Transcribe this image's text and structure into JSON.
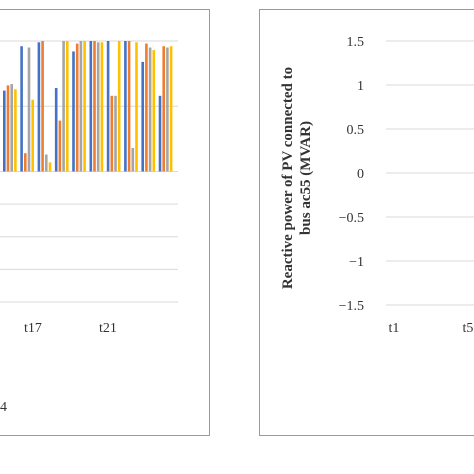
{
  "chart_data": [
    {
      "type": "bar",
      "x_tick_labels": [
        "t17",
        "t21"
      ],
      "legend_fragment": "4",
      "ylim": [
        -1,
        1
      ],
      "grid": true,
      "colors": [
        "#4472C4",
        "#ED7D31",
        "#A5A5A5",
        "#FFC000"
      ],
      "groups": [
        [
          0.62,
          0.66,
          0.67,
          0.63
        ],
        [
          0.96,
          0.14,
          0.95,
          0.55
        ],
        [
          0.99,
          1.0,
          0.13,
          0.07
        ],
        [
          0.64,
          0.39,
          1.0,
          1.0
        ],
        [
          0.92,
          0.98,
          1.0,
          1.0
        ],
        [
          1.0,
          1.0,
          0.99,
          0.99
        ],
        [
          1.0,
          0.58,
          0.58,
          1.0
        ],
        [
          1.0,
          1.0,
          0.18,
          0.99
        ],
        [
          0.84,
          0.98,
          0.95,
          0.93
        ],
        [
          0.58,
          0.96,
          0.95,
          0.96
        ]
      ]
    },
    {
      "type": "bar",
      "ylabel_line1": "Reactive power of PV connected to",
      "ylabel_line2": "bus ac55 (MVAR)",
      "y_ticks": [
        1.5,
        1,
        0.5,
        0,
        -0.5,
        -1,
        -1.5
      ],
      "y_tick_labels": [
        "1.5",
        "1",
        "0.5",
        "0",
        "−0.5",
        "−1",
        "−1.5"
      ],
      "x_tick_labels": [
        "t1",
        "t5"
      ],
      "ylim": [
        -1.5,
        1.5
      ],
      "grid": true
    }
  ]
}
